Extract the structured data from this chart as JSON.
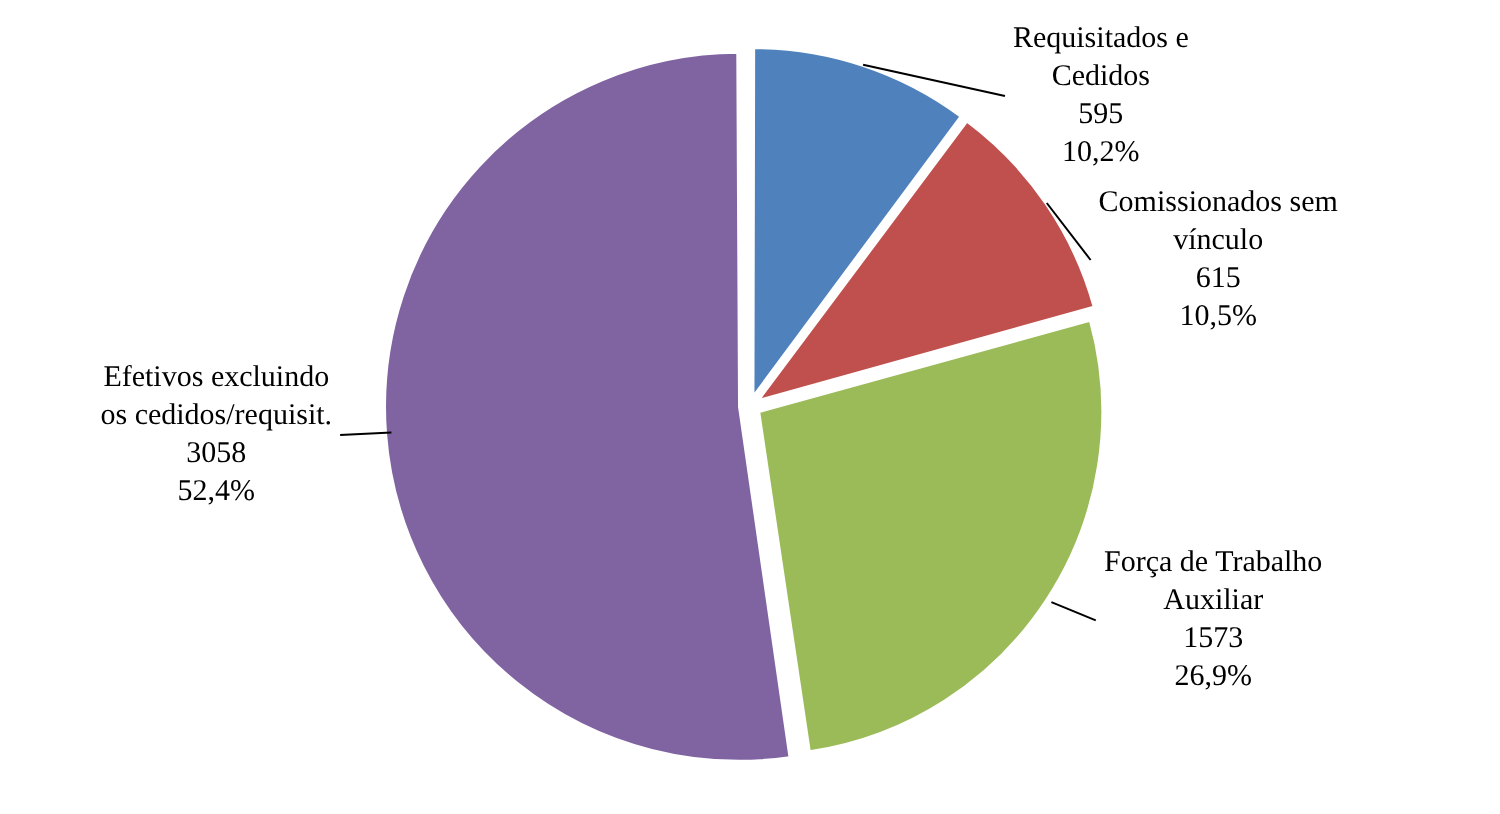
{
  "chart_data": {
    "type": "pie",
    "categories": [
      "Requisitados e Cedidos",
      "Comissionados sem vínculo",
      "Força de Trabalho Auxiliar",
      "Efetivos excluindo os cedidos/requisit."
    ],
    "values": [
      595,
      615,
      1573,
      3058
    ],
    "colors": [
      "#4f81bd",
      "#c0504d",
      "#9bbb59",
      "#8064a2"
    ],
    "value_labels": [
      "595\n10,2%",
      "615\n10,5%",
      "1573\n26,9%",
      "3058\n52,4%"
    ],
    "legend": false
  }
}
